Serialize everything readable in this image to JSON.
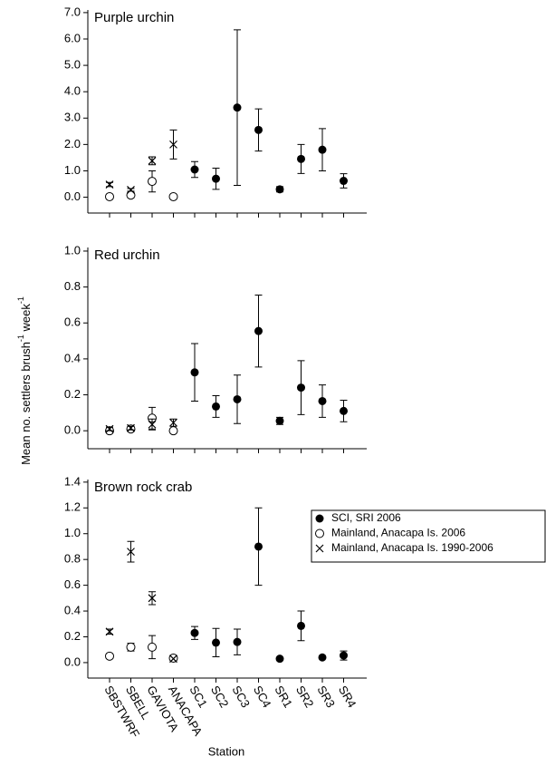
{
  "y_label": {
    "text": "Mean no. settlers brush",
    "sup1": "-1",
    "mid": " week",
    "sup2": "-1"
  },
  "x_label": "Station",
  "chart_data": [
    {
      "type": "scatter",
      "title": "Purple urchin",
      "ylim": [
        -0.6,
        7.1
      ],
      "yticks": [
        {
          "value": 0,
          "label": "0.0"
        },
        {
          "value": 1,
          "label": "1.0"
        },
        {
          "value": 2,
          "label": "2.0"
        },
        {
          "value": 3,
          "label": "3.0"
        },
        {
          "value": 4,
          "label": "4.0"
        },
        {
          "value": 5,
          "label": "5.0"
        },
        {
          "value": 6,
          "label": "6.0"
        },
        {
          "value": 7,
          "label": "7.0"
        }
      ],
      "series": [
        {
          "marker": "filled",
          "values": [
            null,
            null,
            null,
            null,
            1.05,
            0.7,
            3.4,
            2.55,
            0.3,
            1.45,
            1.8,
            0.62
          ],
          "errors": [
            null,
            null,
            null,
            null,
            0.3,
            0.4,
            2.95,
            0.8,
            0.1,
            0.55,
            0.8,
            0.27
          ]
        },
        {
          "marker": "open",
          "values": [
            0.02,
            0.08,
            0.6,
            0.02,
            null,
            null,
            null,
            null,
            null,
            null,
            null,
            null
          ],
          "errors": [
            null,
            0.1,
            0.4,
            null,
            null,
            null,
            null,
            null,
            null,
            null,
            null,
            null
          ]
        },
        {
          "marker": "cross",
          "values": [
            0.48,
            0.28,
            1.38,
            2.0,
            null,
            null,
            null,
            null,
            null,
            null,
            null,
            null
          ],
          "errors": [
            0.08,
            0.05,
            0.15,
            0.55,
            null,
            null,
            null,
            null,
            null,
            null,
            null,
            null
          ]
        }
      ]
    },
    {
      "type": "scatter",
      "title": "Red urchin",
      "ylim": [
        -0.1,
        1.02
      ],
      "yticks": [
        {
          "value": 0,
          "label": "0.0"
        },
        0.2,
        0.4,
        0.6,
        0.8,
        {
          "value": 1,
          "label": "1.0"
        }
      ],
      "series": [
        {
          "marker": "filled",
          "values": [
            null,
            null,
            null,
            null,
            0.325,
            0.135,
            0.175,
            0.555,
            0.055,
            0.24,
            0.165,
            0.11
          ],
          "errors": [
            null,
            null,
            null,
            null,
            0.16,
            0.06,
            0.135,
            0.2,
            0.02,
            0.15,
            0.09,
            0.06
          ]
        },
        {
          "marker": "open",
          "values": [
            0.0,
            0.01,
            0.07,
            0.0,
            null,
            null,
            null,
            null,
            null,
            null,
            null,
            null
          ],
          "errors": [
            null,
            null,
            0.06,
            null,
            null,
            null,
            null,
            null,
            null,
            null,
            null,
            null
          ]
        },
        {
          "marker": "cross",
          "values": [
            0.01,
            0.015,
            0.035,
            0.045,
            null,
            null,
            null,
            null,
            null,
            null,
            null,
            null
          ],
          "errors": [
            0.01,
            0.01,
            0.03,
            0.02,
            null,
            null,
            null,
            null,
            null,
            null,
            null,
            null
          ]
        }
      ]
    },
    {
      "type": "scatter",
      "title": "Brown rock crab",
      "categories": [
        "SBSTWRF",
        "SBELL",
        "GAVIOTA",
        "ANACAPA",
        "SC1",
        "SC2",
        "SC3",
        "SC4",
        "SR1",
        "SR2",
        "SR3",
        "SR4"
      ],
      "ylim": [
        -0.12,
        1.42
      ],
      "yticks": [
        {
          "value": 0,
          "label": "0.0"
        },
        0.2,
        0.4,
        0.6,
        0.8,
        {
          "value": 1,
          "label": "1.0"
        },
        1.2,
        1.4
      ],
      "legend": "right",
      "series": [
        {
          "name": "SCI, SRI 2006",
          "marker": "filled",
          "values": [
            null,
            null,
            null,
            null,
            0.23,
            0.155,
            0.16,
            0.9,
            0.03,
            0.285,
            0.04,
            0.055
          ],
          "errors": [
            null,
            null,
            null,
            null,
            0.05,
            0.11,
            0.1,
            0.3,
            0.01,
            0.115,
            0.01,
            0.035
          ]
        },
        {
          "name": "Mainland, Anacapa Is. 2006",
          "marker": "open",
          "values": [
            0.05,
            0.12,
            0.12,
            0.035,
            null,
            null,
            null,
            null,
            null,
            null,
            null,
            null
          ],
          "errors": [
            null,
            0.03,
            0.09,
            0.02,
            null,
            null,
            null,
            null,
            null,
            null,
            null,
            null
          ]
        },
        {
          "name": "Mainland, Anacapa Is. 1990-2006",
          "marker": "cross",
          "values": [
            0.24,
            0.86,
            0.5,
            0.03,
            null,
            null,
            null,
            null,
            null,
            null,
            null,
            null
          ],
          "errors": [
            0.02,
            0.08,
            0.05,
            null,
            null,
            null,
            null,
            null,
            null,
            null,
            null,
            null
          ]
        }
      ]
    }
  ]
}
